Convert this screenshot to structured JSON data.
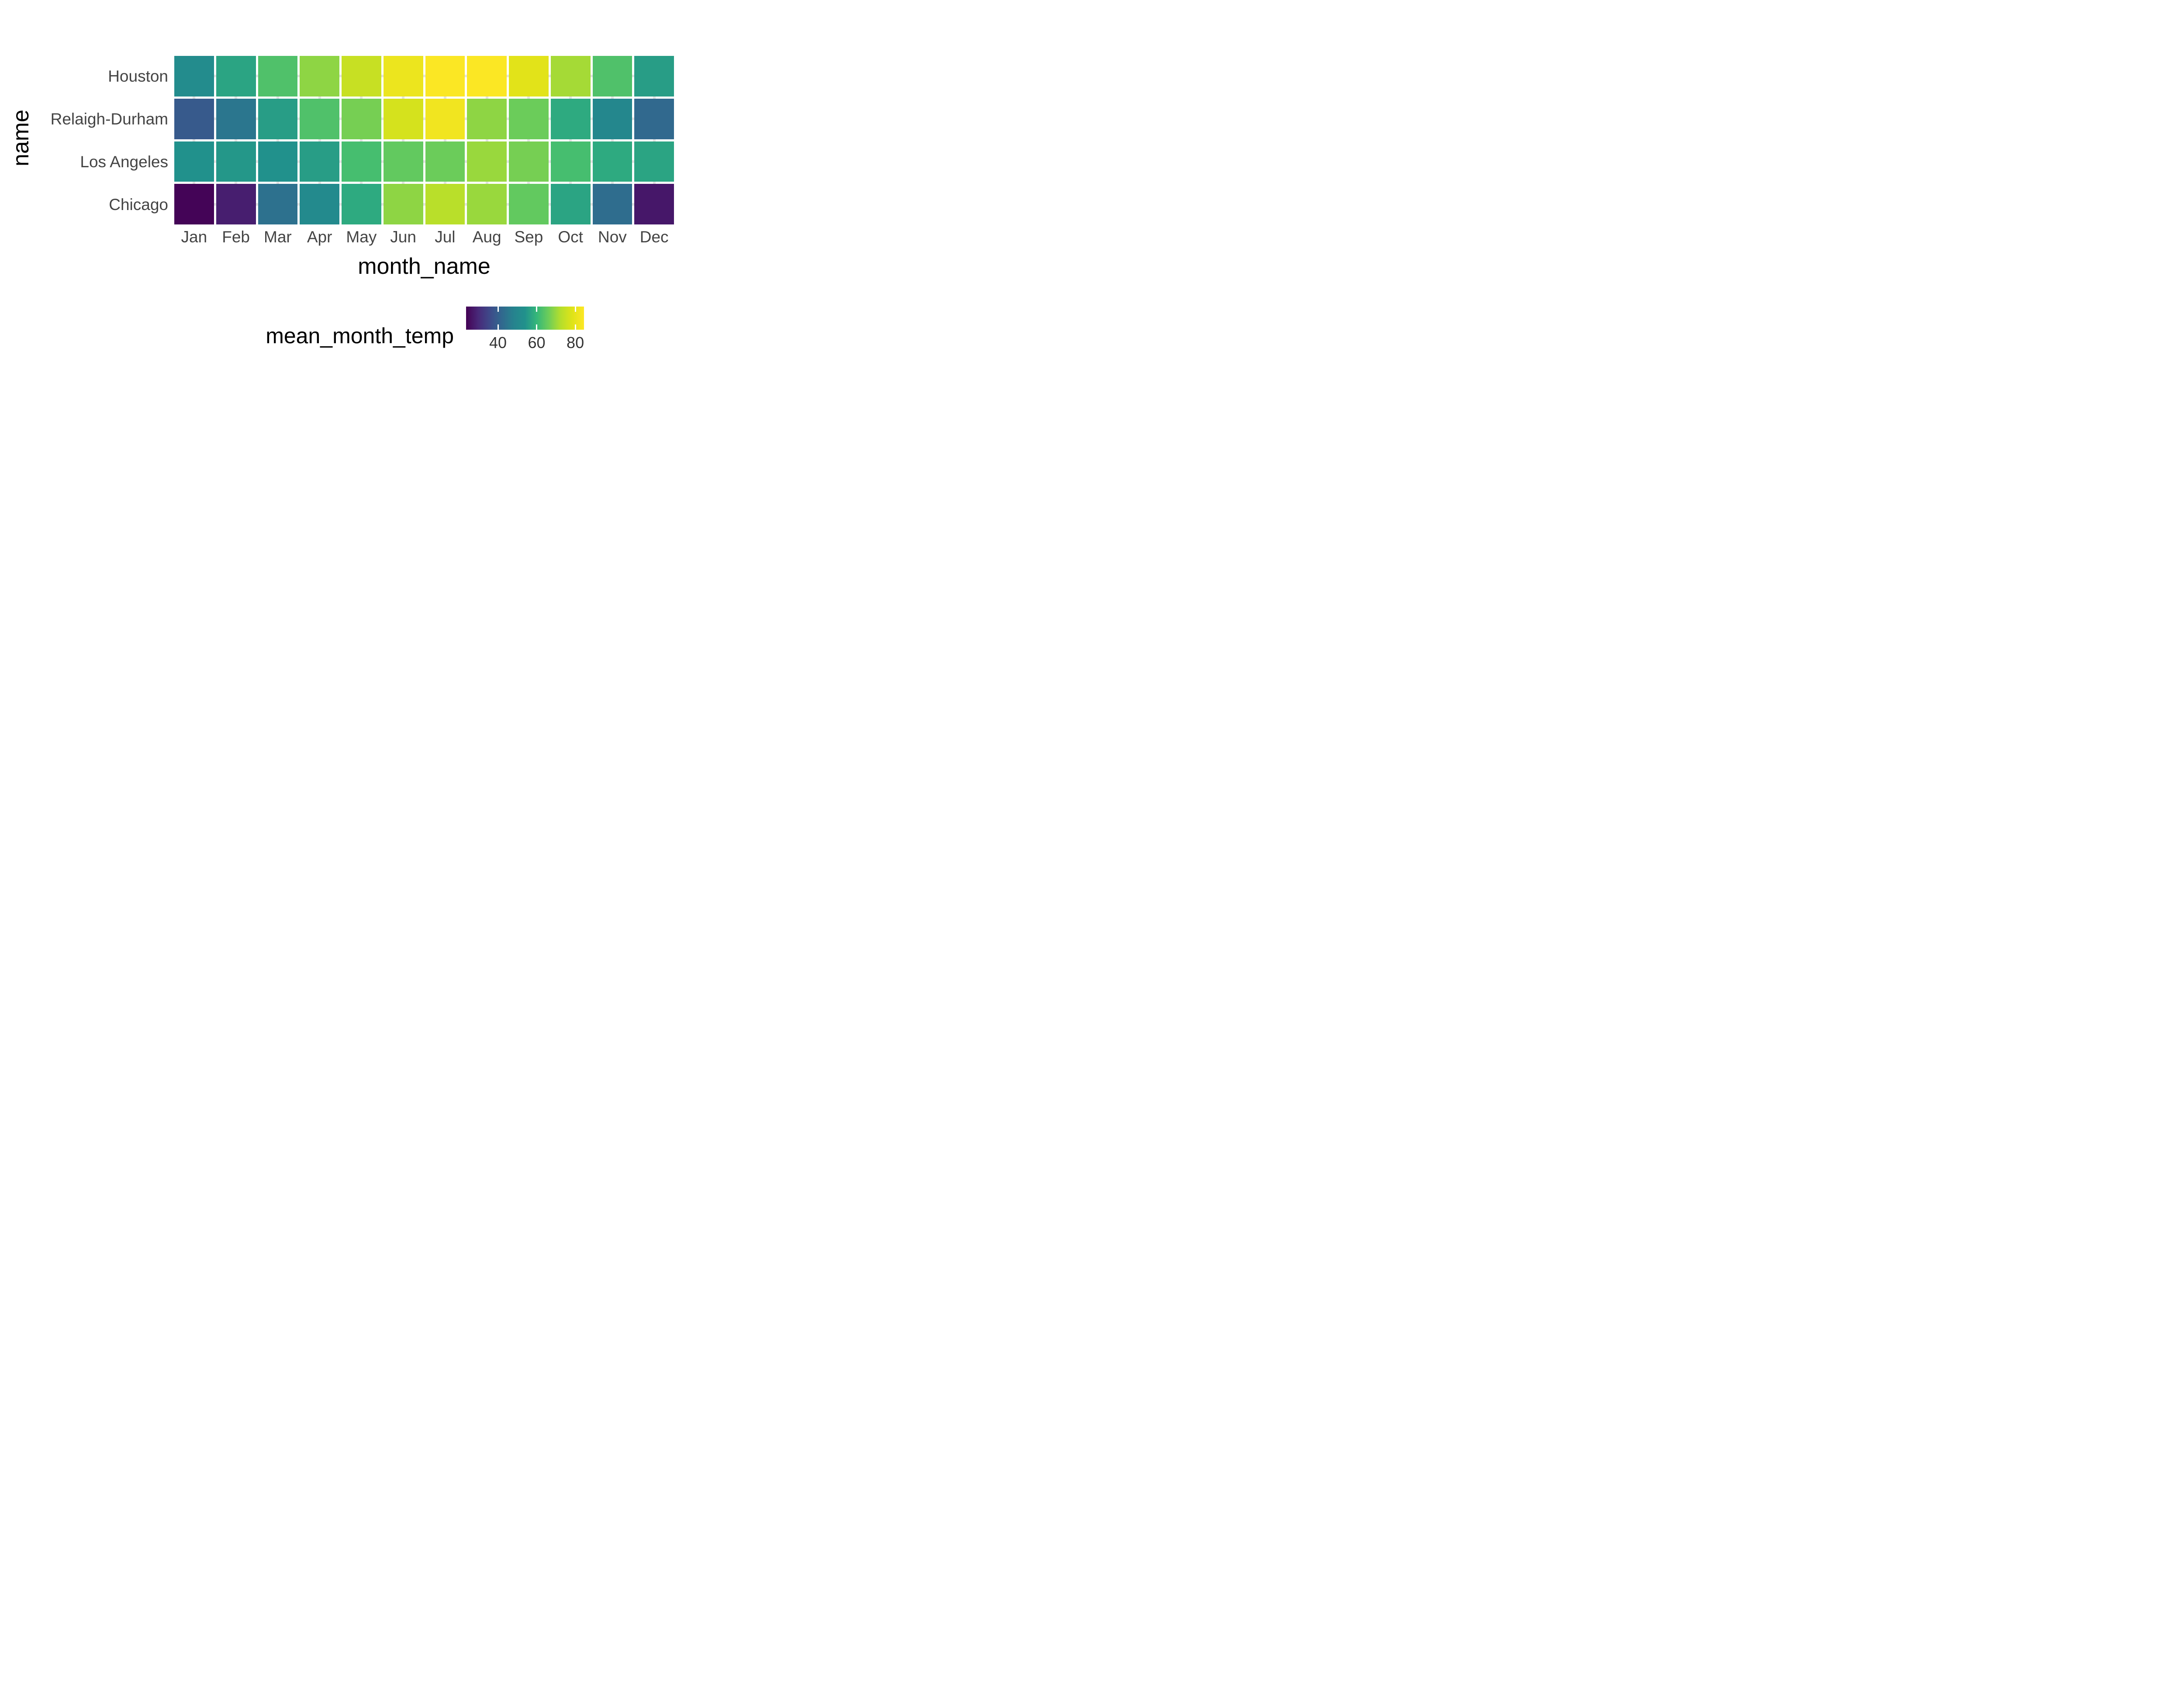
{
  "figure": {
    "background": "#ffffff"
  },
  "axes": {
    "x_title": "month_name",
    "y_title": "name"
  },
  "legend": {
    "title": "mean_month_temp",
    "tick_labels": [
      "40",
      "60",
      "80"
    ]
  },
  "chart_data": {
    "type": "heatmap",
    "title": "",
    "xlabel": "month_name",
    "ylabel": "name",
    "value_label": "mean_month_temp",
    "categories_x": [
      "Jan",
      "Feb",
      "Mar",
      "Apr",
      "May",
      "Jun",
      "Jul",
      "Aug",
      "Sep",
      "Oct",
      "Nov",
      "Dec"
    ],
    "categories_y": [
      "Houston",
      "Relaigh-Durham",
      "Los Angeles",
      "Chicago"
    ],
    "series": [
      {
        "name": "Houston",
        "values": [
          52,
          57,
          63,
          69,
          75,
          81,
          84,
          84,
          79,
          71,
          63,
          56
        ]
      },
      {
        "name": "Relaigh-Durham",
        "values": [
          39,
          45,
          56,
          63,
          67,
          77,
          82,
          69,
          66,
          58,
          50,
          42
        ]
      },
      {
        "name": "Los Angeles",
        "values": [
          54,
          55,
          54,
          56,
          62,
          65,
          66,
          70,
          67,
          62,
          58,
          57
        ]
      },
      {
        "name": "Chicago",
        "values": [
          24,
          28,
          44,
          51,
          58,
          69,
          73,
          70,
          65,
          57,
          43,
          27
        ]
      }
    ],
    "color_scale": {
      "name": "viridis",
      "domain": [
        23.5,
        84.5
      ],
      "legend_ticks": [
        40,
        60,
        80
      ],
      "stops": [
        "#440154",
        "#482878",
        "#3e4989",
        "#31688e",
        "#26828e",
        "#21918c",
        "#35b779",
        "#6dcd59",
        "#b4de2c",
        "#dfe318",
        "#fde725"
      ]
    },
    "grid": true,
    "legend_position": "bottom-right"
  },
  "style": {
    "tick_text_color": "#444444",
    "title_text_color": "#000000",
    "gridline_color": "#e3e3e3",
    "tile_gap_color": "#ffffff"
  }
}
